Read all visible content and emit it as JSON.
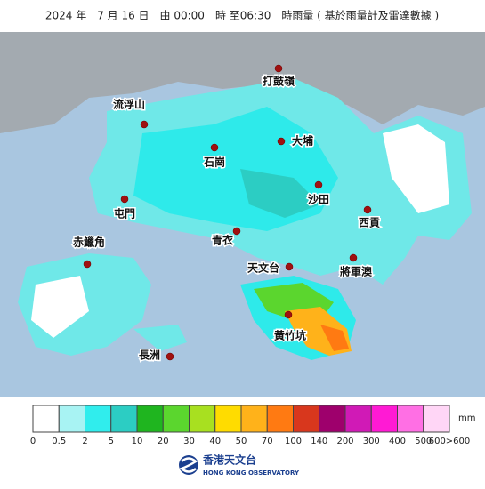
{
  "header": {
    "title": "2024 年　7 月 16 日　由 00:00　時 至06:30　時雨量 ( 基於雨量計及雷達數據 )"
  },
  "places": [
    {
      "label": "打鼓嶺"
    },
    {
      "label": "流浮山"
    },
    {
      "label": "大埔"
    },
    {
      "label": "石崗"
    },
    {
      "label": "沙田"
    },
    {
      "label": "屯門"
    },
    {
      "label": "西貢"
    },
    {
      "label": "青衣"
    },
    {
      "label": "赤鱲角"
    },
    {
      "label": "將軍澳"
    },
    {
      "label": "天文台"
    },
    {
      "label": "黃竹坑"
    },
    {
      "label": "長洲"
    }
  ],
  "legend": {
    "colors": [
      "#ffffff",
      "#a8f3f3",
      "#30eded",
      "#2ccdc3",
      "#1fb51f",
      "#5bd62e",
      "#a8e020",
      "#ffdc00",
      "#ffb21a",
      "#ff7a12",
      "#d8371d",
      "#9e006c",
      "#d01ab6",
      "#ff1ad4",
      "#ff6fe4",
      "#ffd6f6"
    ],
    "labels": [
      "0",
      "0.5",
      "2",
      "5",
      "10",
      "20",
      "30",
      "40",
      "50",
      "70",
      "100",
      "140",
      "200",
      "300",
      "400",
      "500",
      "600>600"
    ],
    "unit": "mm"
  },
  "footer": {
    "name_zh": "香港天文台",
    "name_en": "HONG KONG OBSERVATORY"
  }
}
